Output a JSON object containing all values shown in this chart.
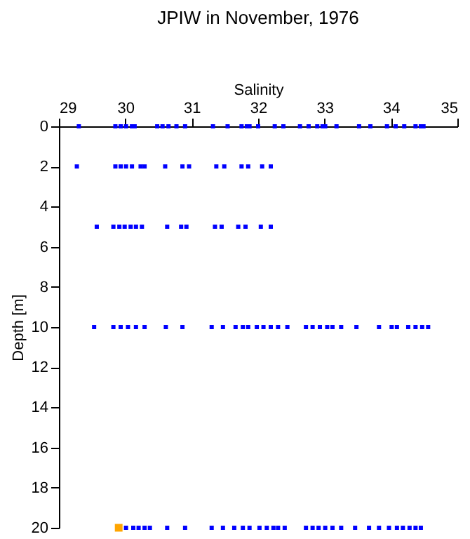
{
  "chart_data": {
    "type": "scatter",
    "title": "JPIW in November, 1976",
    "xlabel": "Salinity",
    "ylabel": "Depth [m]",
    "xlim": [
      29,
      35
    ],
    "xticks": [
      29,
      30,
      31,
      32,
      33,
      34,
      35
    ],
    "ylim": [
      20,
      0
    ],
    "yticks": [
      0,
      2,
      4,
      6,
      8,
      10,
      12,
      14,
      16,
      18,
      20
    ],
    "grid": false,
    "legend": false,
    "marker": "square",
    "series": [
      {
        "color": "#0000ff",
        "x": [
          29.3,
          29.85,
          29.93,
          30.01,
          30.1,
          30.14,
          30.48,
          30.56,
          30.65,
          30.77,
          30.9,
          31.32,
          31.54,
          31.75,
          31.83,
          31.87,
          32.0,
          32.25,
          32.38,
          32.63,
          32.76,
          32.89,
          32.97,
          33.01,
          33.18,
          33.52,
          33.69,
          33.94,
          34.07,
          34.2,
          34.37,
          34.45,
          34.49,
          29.27,
          29.85,
          29.93,
          30.01,
          30.1,
          30.23,
          30.29,
          30.6,
          30.86,
          30.96,
          31.37,
          31.49,
          31.75,
          31.85,
          32.06,
          32.19,
          29.57,
          29.82,
          29.91,
          29.99,
          30.08,
          30.16,
          30.25,
          30.63,
          30.84,
          30.92,
          31.35,
          31.45,
          31.7,
          31.81,
          32.04,
          32.19,
          29.53,
          29.82,
          29.93,
          30.04,
          30.16,
          30.29,
          30.61,
          30.86,
          31.3,
          31.47,
          31.66,
          31.77,
          31.85,
          31.98,
          32.08,
          32.19,
          32.3,
          32.44,
          32.72,
          32.82,
          32.93,
          33.04,
          33.12,
          33.25,
          33.48,
          33.82,
          34.01,
          34.09,
          34.26,
          34.37,
          34.47,
          34.56,
          30.01,
          30.12,
          30.2,
          30.29,
          30.37,
          30.63,
          30.9,
          31.3,
          31.47,
          31.64,
          31.77,
          31.87,
          32.02,
          32.13,
          32.23,
          32.3,
          32.4,
          32.72,
          32.82,
          32.91,
          33.01,
          33.12,
          33.25,
          33.46,
          33.67,
          33.82,
          33.97,
          34.09,
          34.18,
          34.28,
          34.37,
          34.45
        ],
        "values": [
          0,
          0,
          0,
          0,
          0,
          0,
          0,
          0,
          0,
          0,
          0,
          0,
          0,
          0,
          0,
          0,
          0,
          0,
          0,
          0,
          0,
          0,
          0,
          0,
          0,
          0,
          0,
          0,
          0,
          0,
          0,
          0,
          0,
          2,
          2,
          2,
          2,
          2,
          2,
          2,
          2,
          2,
          2,
          2,
          2,
          2,
          2,
          2,
          2,
          5,
          5,
          5,
          5,
          5,
          5,
          5,
          5,
          5,
          5,
          5,
          5,
          5,
          5,
          5,
          5,
          10,
          10,
          10,
          10,
          10,
          10,
          10,
          10,
          10,
          10,
          10,
          10,
          10,
          10,
          10,
          10,
          10,
          10,
          10,
          10,
          10,
          10,
          10,
          10,
          10,
          10,
          10,
          10,
          10,
          10,
          10,
          10,
          20,
          20,
          20,
          20,
          20,
          20,
          20,
          20,
          20,
          20,
          20,
          20,
          20,
          20,
          20,
          20,
          20,
          20,
          20,
          20,
          20,
          20,
          20,
          20,
          20,
          20,
          20,
          20,
          20,
          20,
          20,
          20
        ]
      },
      {
        "color": "#ffa500",
        "x": [
          29.9
        ],
        "values": [
          20
        ]
      }
    ]
  }
}
